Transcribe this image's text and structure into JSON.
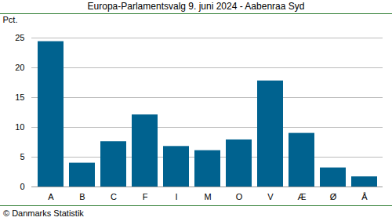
{
  "chart_data": {
    "type": "bar",
    "title": "Europa-Parlamentsvalg 9. juni 2024 - Aabenraa Syd",
    "y_label": "Pct.",
    "caption": "© Danmarks Statistik",
    "categories": [
      "A",
      "B",
      "C",
      "F",
      "I",
      "M",
      "O",
      "V",
      "Æ",
      "Ø",
      "Å"
    ],
    "values": [
      24.4,
      4.0,
      7.6,
      12.1,
      6.8,
      6.1,
      7.9,
      17.8,
      9.0,
      3.2,
      1.7
    ],
    "color": "#00628f",
    "ylim": [
      0,
      25
    ],
    "yticks": [
      0,
      5,
      10,
      15,
      20,
      25
    ],
    "grid": true
  }
}
